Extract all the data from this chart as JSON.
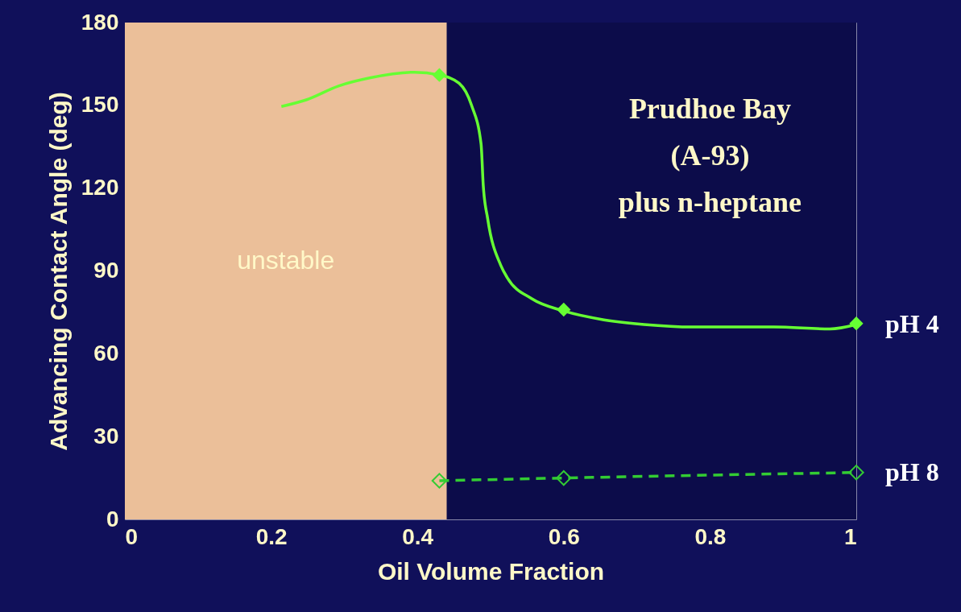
{
  "chart_data": {
    "type": "line",
    "xlabel": "Oil Volume Fraction",
    "ylabel": "Advancing Contact Angle (deg)",
    "xlim": [
      0,
      1
    ],
    "xticks": [
      0,
      0.2,
      0.4,
      0.6,
      0.8,
      1
    ],
    "ylim": [
      0,
      180
    ],
    "yticks": [
      0,
      30,
      60,
      90,
      120,
      150,
      180
    ],
    "grid": false,
    "bands": [
      {
        "axis": "x",
        "from": 0,
        "to": 0.44,
        "label": "unstable",
        "color": "#ebbf99"
      }
    ],
    "annotations": [
      "Prudhoe Bay",
      "(A-93)",
      "plus n-heptane"
    ],
    "series": [
      {
        "name": "pH 4",
        "color": "#66ff33",
        "line_style": "solid",
        "marker": "none",
        "x": [
          0.214,
          0.248,
          0.292,
          0.336,
          0.396,
          0.43,
          0.457,
          0.474,
          0.487,
          0.49,
          0.496,
          0.514,
          0.523,
          0.556,
          0.6,
          0.655,
          0.71,
          0.776,
          0.887,
          0.964,
          1
        ],
        "values": [
          149.6,
          152,
          157,
          160,
          162,
          161,
          158,
          150,
          136,
          121,
          109,
          92,
          87.5,
          80,
          75.5,
          72.3,
          70.6,
          69.7,
          69.7,
          69,
          70.6
        ]
      },
      {
        "type": "scatter",
        "color": "#66ff33",
        "marker": "diamond",
        "x": [
          0.43,
          0.6,
          1
        ],
        "values": [
          161,
          76,
          71
        ]
      },
      {
        "name": "pH 8",
        "color": "#33cc33",
        "line_style": "dashed",
        "marker": "diamond",
        "x": [
          0.43,
          0.6,
          1
        ],
        "values": [
          14,
          15,
          17
        ]
      }
    ]
  }
}
